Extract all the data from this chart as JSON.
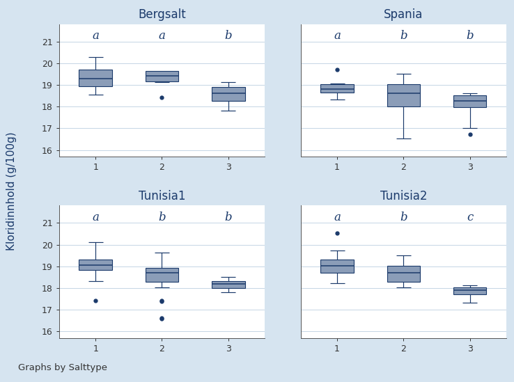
{
  "subplots": [
    {
      "title": "Bergsalt",
      "labels": [
        "a",
        "a",
        "b"
      ],
      "groups": [
        {
          "median": 19.28,
          "q1": 18.95,
          "q3": 19.72,
          "whislo": 18.55,
          "whishi": 20.28,
          "fliers": []
        },
        {
          "median": 19.42,
          "q1": 19.15,
          "q3": 19.65,
          "whislo": 19.12,
          "whishi": 19.55,
          "fliers": [
            18.42
          ]
        },
        {
          "median": 18.62,
          "q1": 18.28,
          "q3": 18.92,
          "whislo": 17.82,
          "whishi": 19.12,
          "fliers": []
        }
      ]
    },
    {
      "title": "Spania",
      "labels": [
        "a",
        "b",
        "b"
      ],
      "groups": [
        {
          "median": 18.82,
          "q1": 18.65,
          "q3": 19.02,
          "whislo": 18.32,
          "whishi": 19.05,
          "fliers": [
            19.72
          ]
        },
        {
          "median": 18.62,
          "q1": 18.02,
          "q3": 19.02,
          "whislo": 16.52,
          "whishi": 19.52,
          "fliers": []
        },
        {
          "median": 18.28,
          "q1": 17.98,
          "q3": 18.52,
          "whislo": 17.02,
          "whishi": 18.62,
          "fliers": [
            16.72
          ]
        }
      ]
    },
    {
      "title": "Tunisia1",
      "labels": [
        "a",
        "b",
        "b"
      ],
      "groups": [
        {
          "median": 19.05,
          "q1": 18.82,
          "q3": 19.32,
          "whislo": 18.32,
          "whishi": 20.12,
          "fliers": [
            17.42
          ]
        },
        {
          "median": 18.72,
          "q1": 18.28,
          "q3": 18.92,
          "whislo": 18.02,
          "whishi": 19.62,
          "fliers": [
            17.42,
            17.38,
            16.62,
            16.58
          ]
        },
        {
          "median": 18.18,
          "q1": 18.0,
          "q3": 18.32,
          "whislo": 17.82,
          "whishi": 18.52,
          "fliers": []
        }
      ]
    },
    {
      "title": "Tunisia2",
      "labels": [
        "a",
        "b",
        "c"
      ],
      "groups": [
        {
          "median": 19.02,
          "q1": 18.7,
          "q3": 19.32,
          "whislo": 18.22,
          "whishi": 19.72,
          "fliers": [
            20.52
          ]
        },
        {
          "median": 18.72,
          "q1": 18.28,
          "q3": 19.02,
          "whislo": 18.02,
          "whishi": 19.52,
          "fliers": []
        },
        {
          "median": 17.9,
          "q1": 17.72,
          "q3": 18.02,
          "whislo": 17.32,
          "whishi": 18.12,
          "fliers": []
        }
      ]
    }
  ],
  "ylim": [
    15.7,
    21.8
  ],
  "yticks": [
    16,
    17,
    18,
    19,
    20,
    21
  ],
  "xticks": [
    1,
    2,
    3
  ],
  "ylabel": "Kloridinnhold (g/100g)",
  "footer": "Graphs by Salttype",
  "box_facecolor": "#8B9DB8",
  "box_edgecolor": "#1B3A6B",
  "median_color": "#1B3A6B",
  "whisker_color": "#1B3A6B",
  "flier_color": "#1B3A6B",
  "outer_bg": "#D6E4F0",
  "plot_bg": "#FFFFFF",
  "title_bar_bg": "#C8D9E8",
  "grid_color": "#C5D5E5",
  "text_color": "#1B3A6B",
  "tick_color": "#333333",
  "label_fontsize": 11,
  "title_fontsize": 12,
  "tick_fontsize": 9,
  "letter_fontsize": 12
}
